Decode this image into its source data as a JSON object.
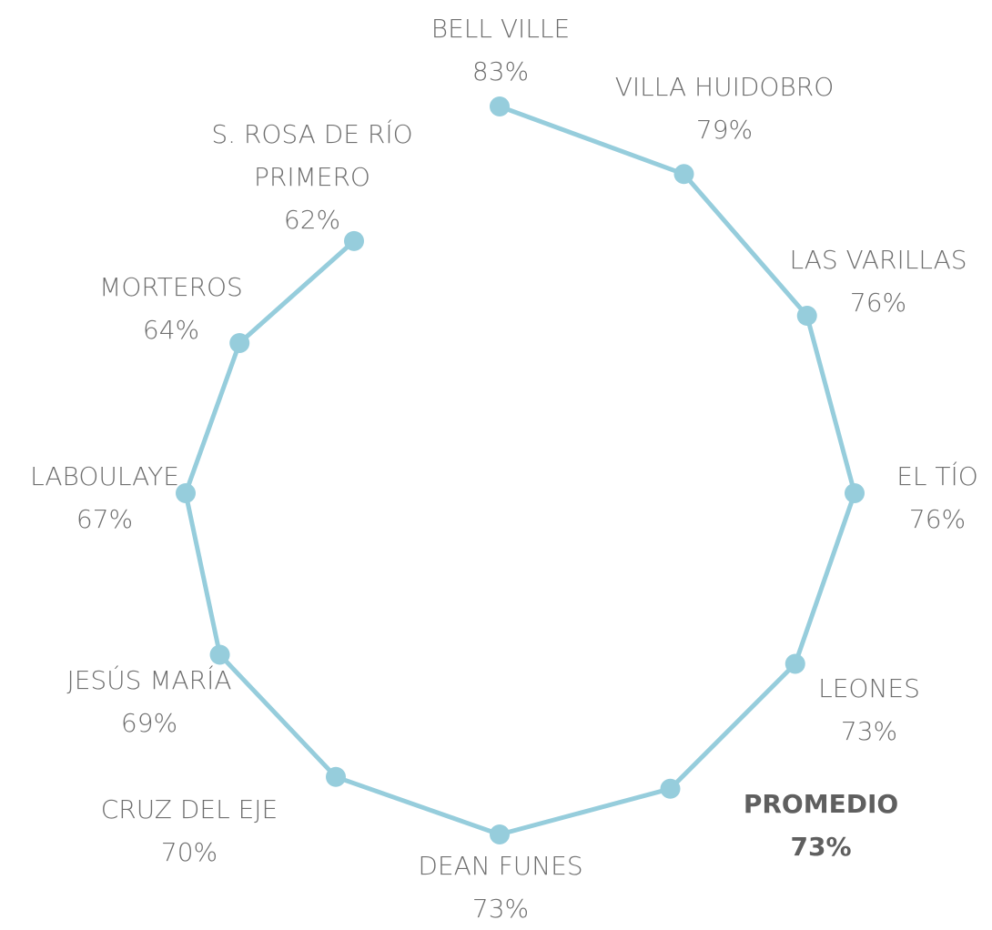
{
  "chart_data": {
    "type": "radar",
    "categories": [
      "BELL VILLE",
      "VILLA HUIDOBRO",
      "LAS VARILLAS",
      "EL TÍO",
      "LEONES",
      "PROMEDIO",
      "DEAN FUNES",
      "CRUZ DEL EJE",
      "JESÚS MARÍA",
      "LABOULAYE",
      "MORTEROS",
      "S. ROSA DE RÍO PRIMERO"
    ],
    "values": [
      83,
      79,
      76,
      76,
      73,
      73,
      73,
      70,
      69,
      67,
      64,
      62
    ],
    "value_labels": [
      "83%",
      "79%",
      "76%",
      "76%",
      "73%",
      "73%",
      "73%",
      "70%",
      "69%",
      "67%",
      "64%",
      "62%"
    ],
    "color": "#96cddc",
    "closed": false,
    "bold_category": "PROMEDIO",
    "rlim": [
      -2,
      90
    ]
  }
}
